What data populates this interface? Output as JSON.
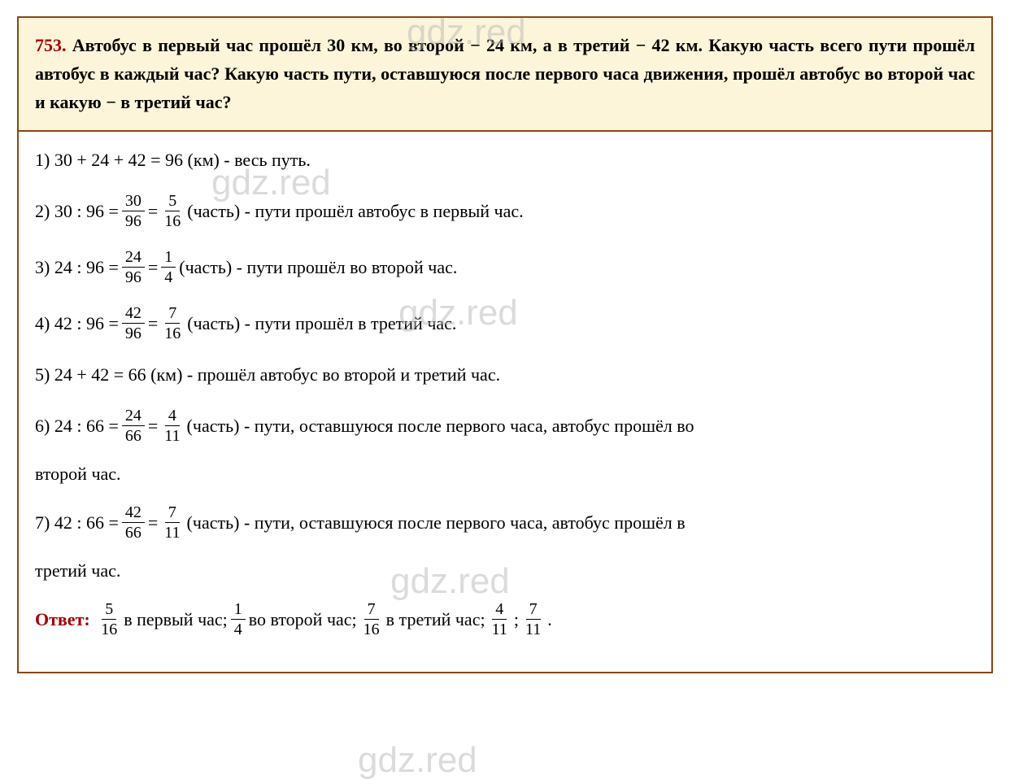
{
  "watermark": "gdz.red",
  "problem": {
    "number": "753.",
    "text": "Автобус в первый час прошёл 30 км, во второй − 24 км, а в третий − 42 км. Какую часть всего пути прошёл автобус в каждый час? Какую часть пути, оставшуюся после первого часа движения, прошёл автобус во второй час и какую − в третий час?"
  },
  "colors": {
    "border": "#8b4513",
    "problem_bg": "#fdf5d9",
    "solution_bg": "#ffffff",
    "text": "#000000",
    "number": "#a00000",
    "watermark": "#b8b8b8"
  },
  "typography": {
    "font_family": "Georgia, Times New Roman, serif",
    "problem_fontsize": 22,
    "problem_weight": "bold",
    "step_fontsize": 22,
    "fraction_fontsize": 20
  },
  "steps": {
    "s1": {
      "prefix": "1) 30 + 24 + 42 = 96 (км) - весь путь."
    },
    "s2": {
      "prefix": "2) 30 : 96 = ",
      "frac1_num": "30",
      "frac1_den": "96",
      "mid": "= ",
      "frac2_num": "5",
      "frac2_den": "16",
      "suffix": "(часть) - пути прошёл автобус в первый час."
    },
    "s3": {
      "prefix": "3) 24 : 96 = ",
      "frac1_num": "24",
      "frac1_den": "96",
      "mid": "= ",
      "frac2_num": "1",
      "frac2_den": "4",
      "suffix": "(часть) - пути прошёл во второй час."
    },
    "s4": {
      "prefix": "4) 42 : 96 = ",
      "frac1_num": "42",
      "frac1_den": "96",
      "mid": "= ",
      "frac2_num": "7",
      "frac2_den": "16",
      "suffix": "(часть) - пути прошёл в третий час."
    },
    "s5": {
      "prefix": "5) 24 + 42 = 66 (км) - прошёл автобус во второй  и третий час."
    },
    "s6": {
      "prefix": "6) 24 : 66 = ",
      "frac1_num": "24",
      "frac1_den": "66",
      "mid": "= ",
      "frac2_num": "4",
      "frac2_den": "11",
      "suffix": "(часть) - пути, оставшуюся после первого часа, автобус прошёл во",
      "continuation": "второй час."
    },
    "s7": {
      "prefix": "7) 42 : 66 = ",
      "frac1_num": "42",
      "frac1_den": "66",
      "mid": "= ",
      "frac2_num": "7",
      "frac2_den": "11",
      "suffix": "(часть) - пути, оставшуюся после первого часа, автобус прошёл  в",
      "continuation": "третий час."
    }
  },
  "answer": {
    "label": "Ответ:",
    "frac1_num": "5",
    "frac1_den": "16",
    "part1": "в первый час; ",
    "frac2_num": "1",
    "frac2_den": "4",
    "part2": "во второй час; ",
    "frac3_num": "7",
    "frac3_den": "16",
    "part3": "в третий час; ",
    "frac4_num": "4",
    "frac4_den": "11",
    "sep": "; ",
    "frac5_num": "7",
    "frac5_den": "11",
    "end": "."
  }
}
